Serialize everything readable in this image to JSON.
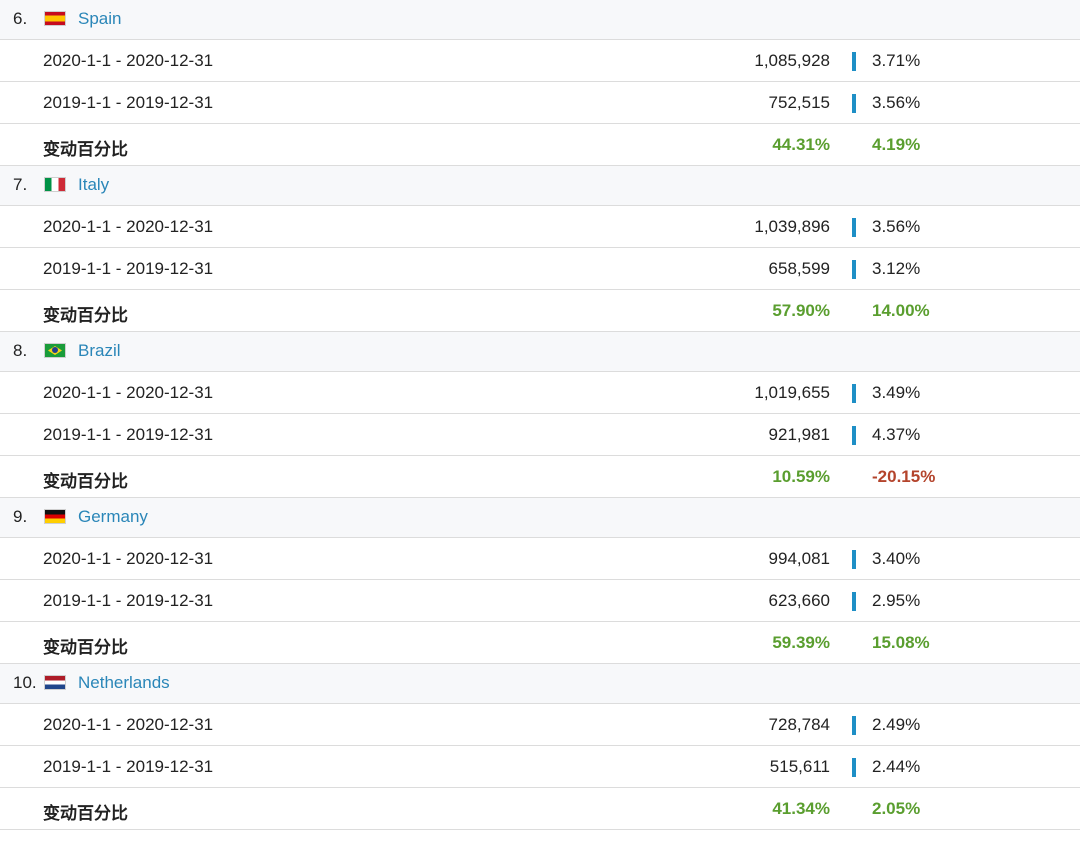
{
  "countries": [
    {
      "rank": "6.",
      "name": "Spain",
      "flag": "flag-es",
      "rows": [
        {
          "period": "2020-1-1 - 2020-12-31",
          "visits": "1,085,928",
          "share": "3.71%"
        },
        {
          "period": "2019-1-1 - 2019-12-31",
          "visits": "752,515",
          "share": "3.56%"
        }
      ],
      "change": {
        "label": "变动百分比",
        "visits": "44.31%",
        "share": "4.19%"
      }
    },
    {
      "rank": "7.",
      "name": "Italy",
      "flag": "flag-it",
      "rows": [
        {
          "period": "2020-1-1 - 2020-12-31",
          "visits": "1,039,896",
          "share": "3.56%"
        },
        {
          "period": "2019-1-1 - 2019-12-31",
          "visits": "658,599",
          "share": "3.12%"
        }
      ],
      "change": {
        "label": "变动百分比",
        "visits": "57.90%",
        "share": "14.00%"
      }
    },
    {
      "rank": "8.",
      "name": "Brazil",
      "flag": "flag-br",
      "rows": [
        {
          "period": "2020-1-1 - 2020-12-31",
          "visits": "1,019,655",
          "share": "3.49%"
        },
        {
          "period": "2019-1-1 - 2019-12-31",
          "visits": "921,981",
          "share": "4.37%"
        }
      ],
      "change": {
        "label": "变动百分比",
        "visits": "10.59%",
        "share": "-20.15%"
      }
    },
    {
      "rank": "9.",
      "name": "Germany",
      "flag": "flag-de",
      "rows": [
        {
          "period": "2020-1-1 - 2020-12-31",
          "visits": "994,081",
          "share": "3.40%"
        },
        {
          "period": "2019-1-1 - 2019-12-31",
          "visits": "623,660",
          "share": "2.95%"
        }
      ],
      "change": {
        "label": "变动百分比",
        "visits": "59.39%",
        "share": "15.08%"
      }
    },
    {
      "rank": "10.",
      "name": "Netherlands",
      "flag": "flag-nl",
      "rows": [
        {
          "period": "2020-1-1 - 2020-12-31",
          "visits": "728,784",
          "share": "2.49%"
        },
        {
          "period": "2019-1-1 - 2019-12-31",
          "visits": "515,611",
          "share": "2.44%"
        }
      ],
      "change": {
        "label": "变动百分比",
        "visits": "41.34%",
        "share": "2.05%"
      }
    }
  ],
  "colors": {
    "link": "#2a86b8",
    "positive": "#5a9e2f",
    "negative": "#b4442c",
    "bar": "#1e8fc6"
  }
}
